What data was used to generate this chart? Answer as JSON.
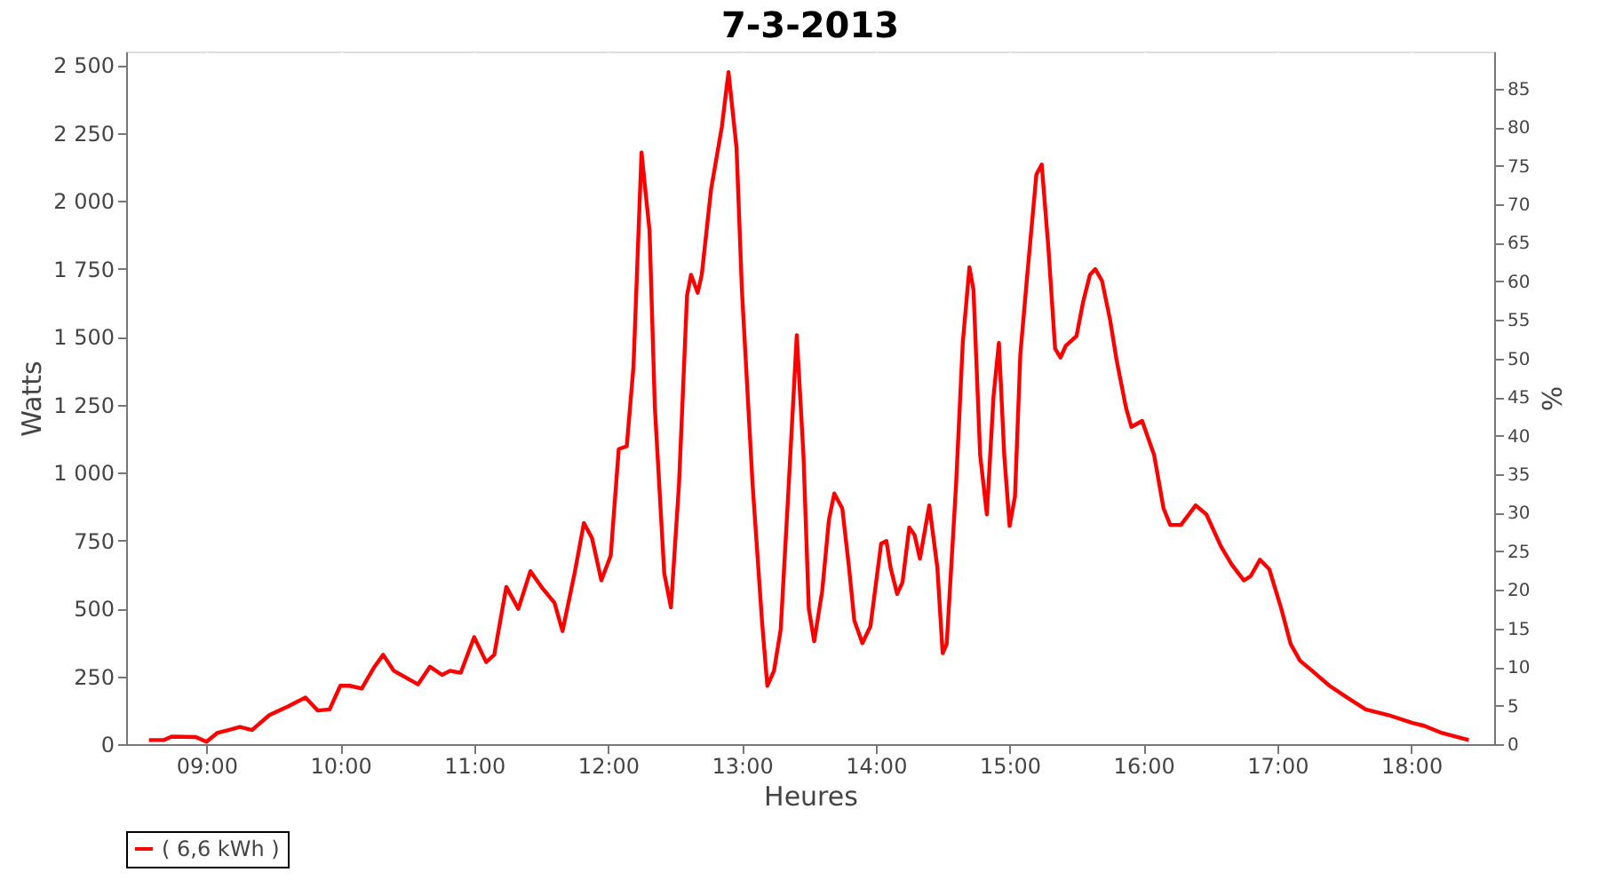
{
  "chart_data": {
    "type": "line",
    "title": "7-3-2013",
    "xlabel": "Heures",
    "ylabel": "Watts",
    "y2label": "%",
    "xlim": [
      8.4,
      18.62
    ],
    "ylim": [
      0,
      2550
    ],
    "y2lim": [
      0,
      89.8
    ],
    "xticks": [
      {
        "value": 9,
        "label": "09:00"
      },
      {
        "value": 10,
        "label": "10:00"
      },
      {
        "value": 11,
        "label": "11:00"
      },
      {
        "value": 12,
        "label": "12:00"
      },
      {
        "value": 13,
        "label": "13:00"
      },
      {
        "value": 14,
        "label": "14:00"
      },
      {
        "value": 15,
        "label": "15:00"
      },
      {
        "value": 16,
        "label": "16:00"
      },
      {
        "value": 17,
        "label": "17:00"
      },
      {
        "value": 18,
        "label": "18:00"
      }
    ],
    "yticks": [
      {
        "value": 0,
        "label": "0"
      },
      {
        "value": 250,
        "label": "250"
      },
      {
        "value": 500,
        "label": "500"
      },
      {
        "value": 750,
        "label": "750"
      },
      {
        "value": 1000,
        "label": "1 000"
      },
      {
        "value": 1250,
        "label": "1 250"
      },
      {
        "value": 1500,
        "label": "1 500"
      },
      {
        "value": 1750,
        "label": "1 750"
      },
      {
        "value": 2000,
        "label": "2 000"
      },
      {
        "value": 2250,
        "label": "2 250"
      },
      {
        "value": 2500,
        "label": "2 500"
      }
    ],
    "y2ticks": [
      0,
      5,
      10,
      15,
      20,
      25,
      30,
      35,
      40,
      45,
      50,
      55,
      60,
      65,
      70,
      75,
      80,
      85
    ],
    "grid": true,
    "legend": "bottom",
    "line_style": "solid",
    "x": [
      8.57,
      8.68,
      8.74,
      8.92,
      9.0,
      9.08,
      9.25,
      9.34,
      9.47,
      9.61,
      9.74,
      9.83,
      9.92,
      10.0,
      10.07,
      10.16,
      10.25,
      10.32,
      10.4,
      10.58,
      10.67,
      10.76,
      10.82,
      10.9,
      11.0,
      11.09,
      11.15,
      11.24,
      11.33,
      11.42,
      11.51,
      11.6,
      11.66,
      11.75,
      11.82,
      11.88,
      11.95,
      12.02,
      12.08,
      12.14,
      12.19,
      12.25,
      12.31,
      12.35,
      12.42,
      12.47,
      12.53,
      12.59,
      12.62,
      12.67,
      12.7,
      12.77,
      12.85,
      12.9,
      12.96,
      13.0,
      13.08,
      13.15,
      13.19,
      13.24,
      13.29,
      13.35,
      13.41,
      13.46,
      13.5,
      13.54,
      13.6,
      13.65,
      13.69,
      13.75,
      13.8,
      13.84,
      13.9,
      13.96,
      14.04,
      14.08,
      14.11,
      14.16,
      14.2,
      14.25,
      14.29,
      14.33,
      14.4,
      14.46,
      14.5,
      14.53,
      14.6,
      14.65,
      14.7,
      14.73,
      14.78,
      14.83,
      14.88,
      14.92,
      14.96,
      15.0,
      15.04,
      15.08,
      15.13,
      15.2,
      15.24,
      15.29,
      15.34,
      15.38,
      15.42,
      15.5,
      15.55,
      15.6,
      15.64,
      15.69,
      15.75,
      15.8,
      15.87,
      15.91,
      15.99,
      16.08,
      16.15,
      16.2,
      16.28,
      16.39,
      16.47,
      16.58,
      16.66,
      16.75,
      16.8,
      16.87,
      16.94,
      17.03,
      17.1,
      17.17,
      17.26,
      17.39,
      17.52,
      17.66,
      17.83,
      18.01,
      18.1,
      18.23,
      18.43
    ],
    "series": [
      {
        "name": "( 6,6 kWh )",
        "color": "#ff0000",
        "values": [
          15,
          15,
          28,
          26,
          9,
          41,
          63,
          52,
          107,
          139,
          172,
          124,
          128,
          215,
          215,
          205,
          281,
          329,
          270,
          220,
          285,
          255,
          270,
          263,
          394,
          302,
          329,
          579,
          498,
          637,
          574,
          520,
          416,
          629,
          814,
          759,
          603,
          694,
          1086,
          1097,
          1390,
          2178,
          1891,
          1238,
          629,
          503,
          955,
          1651,
          1728,
          1662,
          1728,
          2043,
          2272,
          2474,
          2195,
          1673,
          955,
          455,
          215,
          270,
          422,
          955,
          1506,
          1064,
          498,
          379,
          564,
          825,
          923,
          868,
          651,
          455,
          372,
          433,
          738,
          748,
          651,
          553,
          596,
          798,
          770,
          683,
          879,
          651,
          335,
          368,
          955,
          1477,
          1756,
          1673,
          1064,
          846,
          1282,
          1477,
          1064,
          803,
          912,
          1434,
          1717,
          2097,
          2134,
          1825,
          1456,
          1423,
          1467,
          1503,
          1630,
          1728,
          1749,
          1706,
          1564,
          1412,
          1238,
          1168,
          1190,
          1064,
          868,
          807,
          807,
          879,
          846,
          727,
          661,
          603,
          618,
          679,
          644,
          498,
          368,
          307,
          270,
          215,
          172,
          128,
          107,
          78,
          67,
          41,
          15
        ]
      }
    ]
  }
}
